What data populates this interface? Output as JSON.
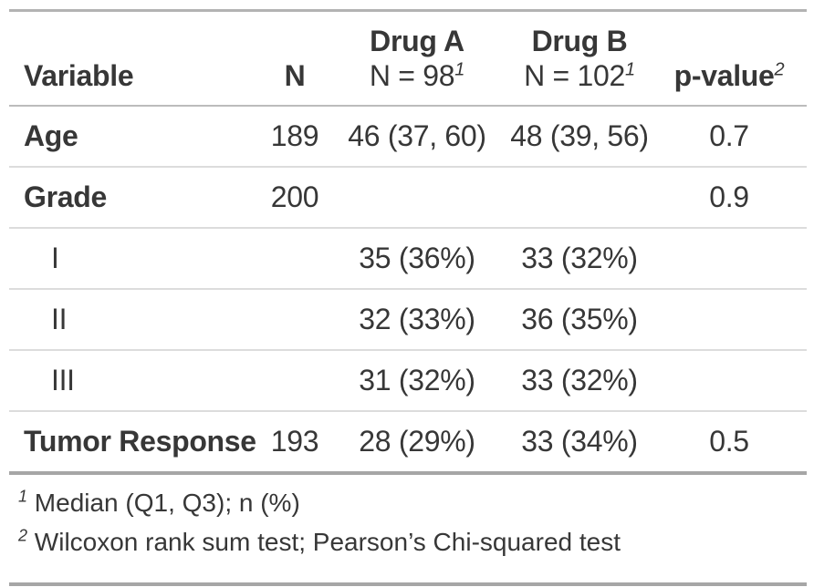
{
  "chart_data": {
    "type": "table",
    "title": "",
    "columns": [
      "Variable",
      "N",
      "Drug A, N = 98",
      "Drug B, N = 102",
      "p-value"
    ],
    "rows": [
      [
        "Age",
        "189",
        "46 (37, 60)",
        "48 (39, 56)",
        "0.7"
      ],
      [
        "Grade",
        "200",
        "",
        "",
        "0.9"
      ],
      [
        "I",
        "",
        "35 (36%)",
        "33 (32%)",
        ""
      ],
      [
        "II",
        "",
        "32 (33%)",
        "36 (35%)",
        ""
      ],
      [
        "III",
        "",
        "31 (32%)",
        "33 (32%)",
        ""
      ],
      [
        "Tumor Response",
        "193",
        "28 (29%)",
        "33 (34%)",
        "0.5"
      ]
    ],
    "footnotes": [
      "1 Median (Q1, Q3); n (%)",
      "2 Wilcoxon rank sum test; Pearson’s Chi-squared test"
    ],
    "layout_hints": {
      "grid": "horizontal rules only",
      "header_border_color": "#bcbcbc",
      "row_separator_color": "#dcdcdc",
      "outer_border_color": "#a6a6a6",
      "text_color": "#373737",
      "background": "#ffffff"
    }
  },
  "table": {
    "header": {
      "variable": "Variable",
      "n": "N",
      "drug_a_label": "Drug A",
      "drug_a_sublabel": "N = 98",
      "drug_a_footnote_ref": "1",
      "drug_b_label": "Drug B",
      "drug_b_sublabel": "N = 102",
      "drug_b_footnote_ref": "1",
      "p_label": "p-value",
      "p_footnote_ref": "2"
    },
    "rows": [
      {
        "variable": "Age",
        "n": "189",
        "drug_a": "46 (37, 60)",
        "drug_b": "48 (39, 56)",
        "p": "0.7"
      },
      {
        "variable": "Grade",
        "n": "200",
        "drug_a": "",
        "drug_b": "",
        "p": "0.9"
      },
      {
        "variable": "I",
        "n": "",
        "drug_a": "35 (36%)",
        "drug_b": "33 (32%)",
        "p": ""
      },
      {
        "variable": "II",
        "n": "",
        "drug_a": "32 (33%)",
        "drug_b": "36 (35%)",
        "p": ""
      },
      {
        "variable": "III",
        "n": "",
        "drug_a": "31 (32%)",
        "drug_b": "33 (32%)",
        "p": ""
      },
      {
        "variable": "Tumor Response",
        "n": "193",
        "drug_a": "28 (29%)",
        "drug_b": "33 (34%)",
        "p": "0.5"
      }
    ],
    "footnotes": [
      {
        "marker": "1",
        "text": "Median (Q1, Q3); n (%)"
      },
      {
        "marker": "2",
        "text": "Wilcoxon rank sum test; Pearson’s Chi-squared test"
      }
    ]
  }
}
